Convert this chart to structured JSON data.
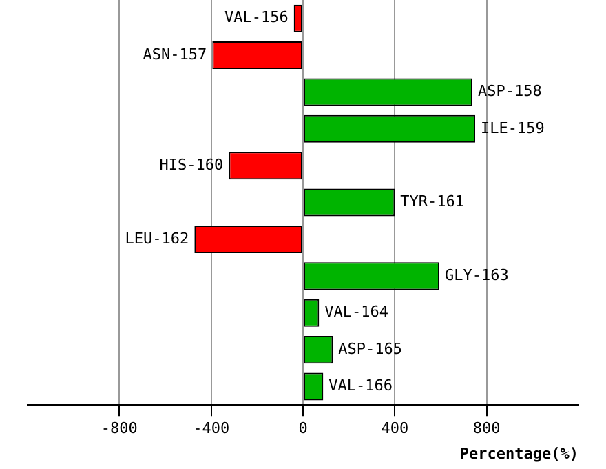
{
  "chart_data": {
    "type": "bar",
    "orientation": "horizontal",
    "xlabel": "Percentage(%)",
    "categories": [
      "VAL-156",
      "ASN-157",
      "ASP-158",
      "ILE-159",
      "HIS-160",
      "TYR-161",
      "LEU-162",
      "GLY-163",
      "VAL-164",
      "ASP-165",
      "VAL-166"
    ],
    "values": [
      -40,
      -395,
      738,
      750,
      -323,
      400,
      -473,
      594,
      70,
      130,
      88
    ],
    "colors": [
      "#ff0000",
      "#ff0000",
      "#00b400",
      "#00b400",
      "#ff0000",
      "#00b400",
      "#ff0000",
      "#00b400",
      "#00b400",
      "#00b400",
      "#00b400"
    ],
    "xlim": [
      -1200,
      1200
    ],
    "xticks": [
      -800,
      -400,
      0,
      400,
      800
    ],
    "grid": "x",
    "tick_labels": "x"
  }
}
